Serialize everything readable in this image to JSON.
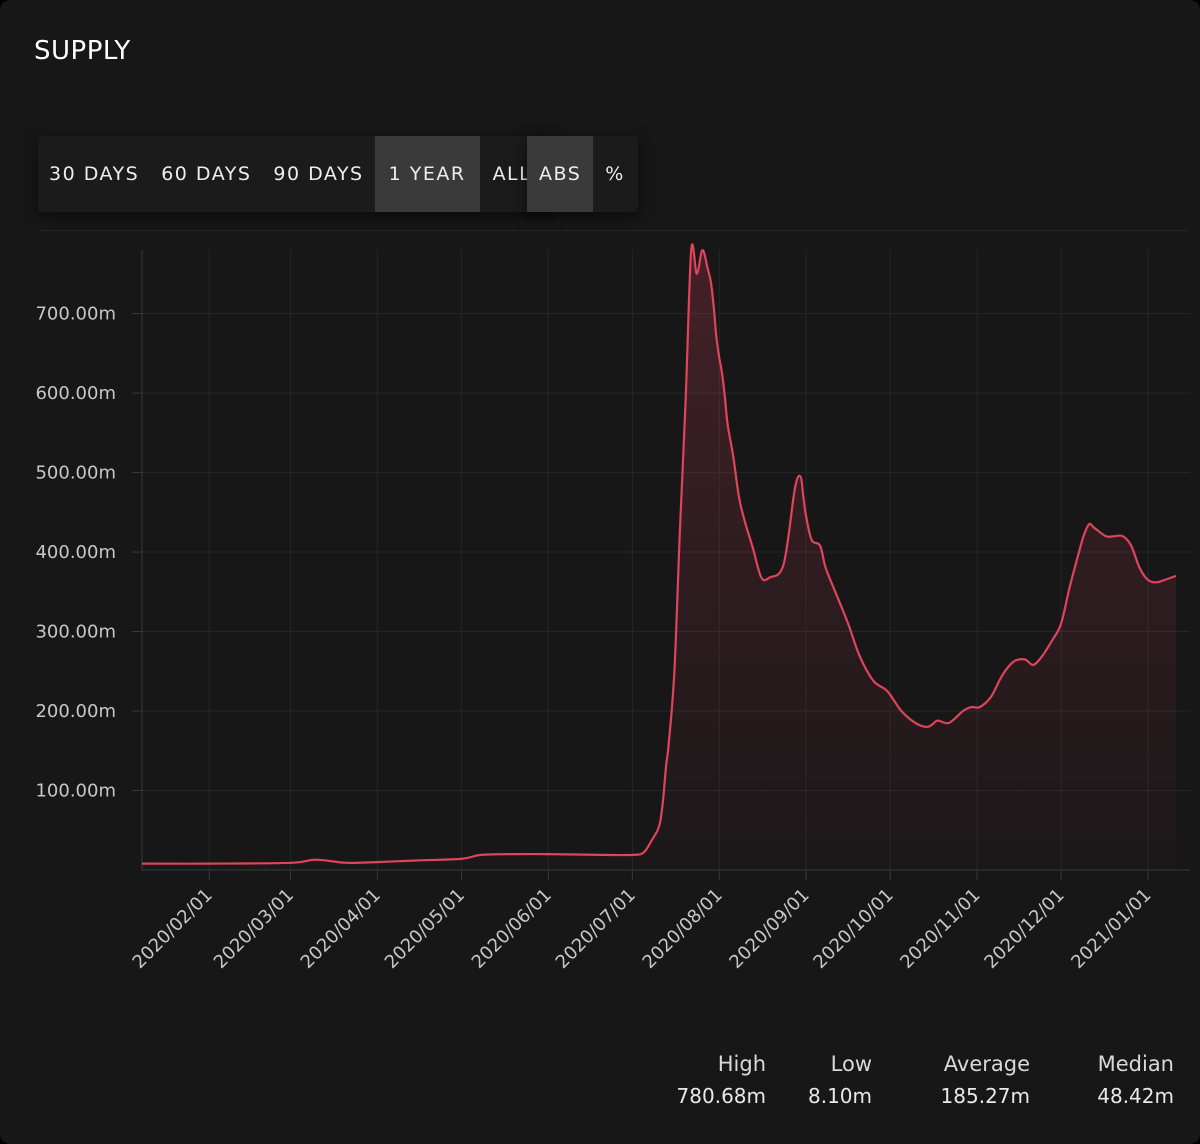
{
  "panel": {
    "title": "SUPPLY"
  },
  "range_buttons": [
    {
      "label": "30 DAYS",
      "active": false
    },
    {
      "label": "60 DAYS",
      "active": false
    },
    {
      "label": "90 DAYS",
      "active": false
    },
    {
      "label": "1 YEAR",
      "active": true
    },
    {
      "label": "ALL",
      "active": false
    }
  ],
  "mode_buttons": [
    {
      "label": "ABS",
      "active": true
    },
    {
      "label": "%",
      "active": false
    }
  ],
  "stats": [
    {
      "label": "High",
      "value": "780.68m"
    },
    {
      "label": "Low",
      "value": "8.10m"
    },
    {
      "label": "Average",
      "value": "185.27m"
    },
    {
      "label": "Median",
      "value": "48.42m"
    }
  ],
  "colors": {
    "line": "#e0445a",
    "background": "#171718",
    "grid": "#2a2a2b",
    "text": "#c9c9c9"
  },
  "chart_data": {
    "type": "area",
    "title": "",
    "xlabel": "",
    "ylabel": "",
    "y_unit": "m",
    "y_ticks": [
      "100.00m",
      "200.00m",
      "300.00m",
      "400.00m",
      "500.00m",
      "600.00m",
      "700.00m"
    ],
    "y_tick_values": [
      100,
      200,
      300,
      400,
      500,
      600,
      700
    ],
    "ylim": [
      0,
      780
    ],
    "x_range": [
      "2020-01-08",
      "2021-01-11"
    ],
    "x_ticks": [
      "2020/02/01",
      "2020/03/01",
      "2020/04/01",
      "2020/05/01",
      "2020/06/01",
      "2020/07/01",
      "2020/08/01",
      "2020/09/01",
      "2020/10/01",
      "2020/11/01",
      "2020/12/01",
      "2021/01/01"
    ],
    "x_tick_dates": [
      "2020-02-01",
      "2020-03-01",
      "2020-04-01",
      "2020-05-01",
      "2020-06-01",
      "2020-07-01",
      "2020-08-01",
      "2020-09-01",
      "2020-10-01",
      "2020-11-01",
      "2020-12-01",
      "2021-01-01"
    ],
    "grid": true,
    "legend": "none",
    "series": [
      {
        "x": [
          "2020-01-08",
          "2020-02-01",
          "2020-03-01",
          "2020-03-10",
          "2020-03-21",
          "2020-04-01",
          "2020-04-15",
          "2020-05-01",
          "2020-05-08",
          "2020-05-21",
          "2020-06-01",
          "2020-06-20",
          "2020-07-01",
          "2020-07-05",
          "2020-07-08",
          "2020-07-10",
          "2020-07-11",
          "2020-07-12",
          "2020-07-13",
          "2020-07-14",
          "2020-07-16",
          "2020-07-18",
          "2020-07-20",
          "2020-07-22",
          "2020-07-24",
          "2020-07-26",
          "2020-07-28",
          "2020-07-29",
          "2020-07-30",
          "2020-07-31",
          "2020-08-01",
          "2020-08-02",
          "2020-08-03",
          "2020-08-04",
          "2020-08-06",
          "2020-08-08",
          "2020-08-10",
          "2020-08-13",
          "2020-08-16",
          "2020-08-19",
          "2020-08-24",
          "2020-08-28",
          "2020-08-30",
          "2020-08-31",
          "2020-09-01",
          "2020-09-03",
          "2020-09-06",
          "2020-09-08",
          "2020-09-12",
          "2020-09-16",
          "2020-09-20",
          "2020-09-25",
          "2020-09-30",
          "2020-10-05",
          "2020-10-10",
          "2020-10-14",
          "2020-10-16",
          "2020-10-18",
          "2020-10-22",
          "2020-10-27",
          "2020-10-30",
          "2020-11-02",
          "2020-11-06",
          "2020-11-10",
          "2020-11-14",
          "2020-11-18",
          "2020-11-21",
          "2020-11-24",
          "2020-11-28",
          "2020-12-01",
          "2020-12-04",
          "2020-12-07",
          "2020-12-09",
          "2020-12-11",
          "2020-12-13",
          "2020-12-17",
          "2020-12-20",
          "2020-12-23",
          "2020-12-26",
          "2020-12-29",
          "2021-01-01",
          "2021-01-04",
          "2021-01-07",
          "2021-01-11"
        ],
        "values": [
          8,
          8,
          9,
          13,
          9,
          10,
          12,
          14,
          19,
          20,
          20,
          19,
          19,
          22,
          38,
          50,
          62,
          90,
          130,
          160,
          250,
          430,
          590,
          780,
          750,
          780,
          755,
          740,
          710,
          670,
          645,
          625,
          595,
          560,
          520,
          470,
          440,
          405,
          368,
          368,
          385,
          480,
          495,
          470,
          445,
          415,
          408,
          380,
          345,
          310,
          270,
          238,
          225,
          200,
          185,
          180,
          183,
          188,
          185,
          200,
          205,
          205,
          218,
          245,
          262,
          265,
          258,
          268,
          290,
          310,
          355,
          395,
          420,
          435,
          430,
          420,
          420,
          420,
          408,
          380,
          365,
          362,
          365,
          370
        ]
      }
    ]
  }
}
